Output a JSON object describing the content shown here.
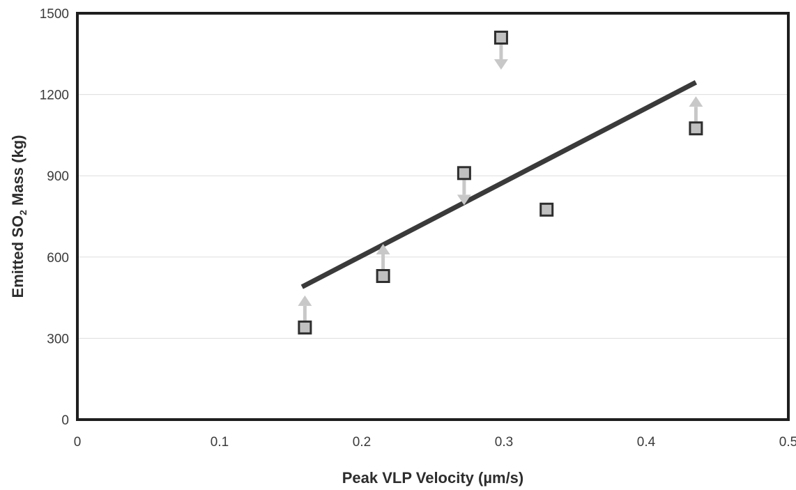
{
  "chart_data": {
    "type": "scatter",
    "title": "",
    "xlabel": "Peak VLP Velocity (µm/s)",
    "ylabel_parts": {
      "pre": "Emitted SO",
      "sub": "2",
      "post": " Mass (kg)"
    },
    "xlim": [
      0,
      0.5
    ],
    "ylim": [
      0,
      1500
    ],
    "x_ticks": [
      0,
      0.1,
      0.2,
      0.3,
      0.4,
      0.5
    ],
    "x_tick_labels": [
      "0",
      "0.1",
      "0.2",
      "0.3",
      "0.4",
      "0.5"
    ],
    "y_ticks": [
      0,
      300,
      600,
      900,
      1200,
      1500
    ],
    "y_tick_labels": [
      "0",
      "300",
      "600",
      "900",
      "1200",
      "1500"
    ],
    "grid": {
      "horizontal": true,
      "vertical": false
    },
    "points": [
      {
        "x": 0.16,
        "y": 340,
        "arrow": "up"
      },
      {
        "x": 0.215,
        "y": 530,
        "arrow": "up"
      },
      {
        "x": 0.272,
        "y": 910,
        "arrow": "down"
      },
      {
        "x": 0.298,
        "y": 1410,
        "arrow": "down"
      },
      {
        "x": 0.33,
        "y": 775,
        "arrow": "none"
      },
      {
        "x": 0.435,
        "y": 1075,
        "arrow": "up"
      }
    ],
    "fit_line": {
      "x": [
        0.158,
        0.435
      ],
      "y": [
        490,
        1245
      ]
    },
    "colors": {
      "marker_fill": "#c0c0c0",
      "marker_edge": "#2e2e2e",
      "arrow": "#c8c8c8",
      "fit_line": "#3a3a3a",
      "grid": "#dddddd",
      "frame": "#1e1e1e"
    }
  }
}
